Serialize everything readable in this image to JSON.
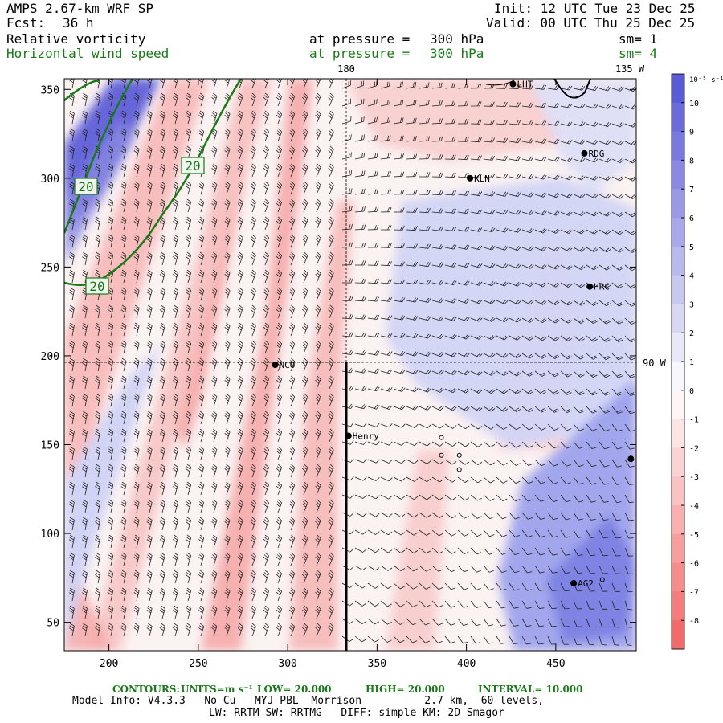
{
  "header": {
    "model": "AMPS 2.67-km WRF SP",
    "fcst_label": "Fcst:",
    "fcst_value": "36 h",
    "init": "Init: 12 UTC Tue 23 Dec 25",
    "valid": "Valid: 00 UTC Thu 25 Dec 25",
    "field1_name": "Relative vorticity",
    "field1_level_label": "at pressure =",
    "field1_level_value": "300 hPa",
    "field1_sm": "sm= 1",
    "field2_name": "Horizontal wind speed",
    "field2_level_label": "at pressure =",
    "field2_level_value": "300 hPa",
    "field2_sm": "sm= 4"
  },
  "map_labels": {
    "lon_180": "180",
    "lon_135w": "135 W",
    "lon_90w": "90 W"
  },
  "colorbar": {
    "unit": "10⁻⁵ s⁻¹",
    "ticks": [
      "10",
      "9",
      "8",
      "7",
      "6",
      "5",
      "4",
      "3",
      "2",
      "1",
      "0",
      "-1",
      "-2",
      "-3",
      "-4",
      "-5",
      "-6",
      "-7",
      "-8"
    ],
    "positive_color": "#5b5bd6",
    "negative_color": "#f26a6a"
  },
  "footer": {
    "contours_label": "CONTOURS:",
    "units_label": "UNITS=m s⁻¹",
    "low": "LOW= 20.000",
    "high": "HIGH= 20.000",
    "interval": "INTERVAL= 10.000",
    "line1": "Model Info: V4.3.3   No Cu   MYJ PBL  Morrison          2.7 km,  60 levels,",
    "line2": "LW: RRTM SW: RRTMG   DIFF: simple KM: 2D Smagor"
  },
  "chart_data": {
    "type": "heatmap",
    "title": "Relative vorticity / Horizontal wind speed at 300 hPa",
    "x_ticks": [
      200,
      250,
      300,
      350,
      400,
      450
    ],
    "y_ticks": [
      50,
      100,
      150,
      200,
      250,
      300,
      350
    ],
    "xlim": [
      175,
      495
    ],
    "ylim": [
      34,
      356
    ],
    "contour_labels": [
      "20",
      "20",
      "20"
    ],
    "contour_value": 20,
    "stations": [
      {
        "name": "LHT",
        "x": 426,
        "y": 353
      },
      {
        "name": "RDG",
        "x": 466,
        "y": 314
      },
      {
        "name": "KLN",
        "x": 402,
        "y": 300
      },
      {
        "name": "HRC",
        "x": 469,
        "y": 239
      },
      {
        "name": "NCO",
        "x": 293,
        "y": 195
      },
      {
        "name": "Henry",
        "x": 334,
        "y": 155
      },
      {
        "name": "",
        "x": 492,
        "y": 142
      },
      {
        "name": "AG2",
        "x": 460,
        "y": 72
      }
    ],
    "open_circles": [
      {
        "x": 386,
        "y": 154
      },
      {
        "x": 386,
        "y": 144
      },
      {
        "x": 396,
        "y": 144
      },
      {
        "x": 396,
        "y": 136
      },
      {
        "x": 476,
        "y": 74
      }
    ]
  }
}
